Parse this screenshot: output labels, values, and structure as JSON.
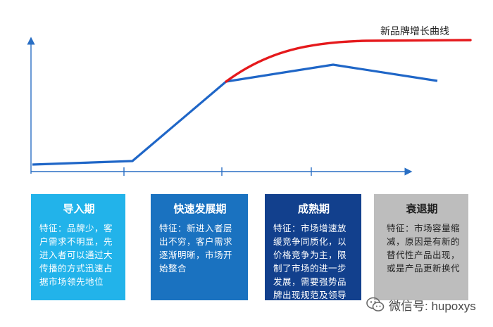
{
  "curve_label": "新品牌增长曲线",
  "stages": [
    {
      "title": "导入期",
      "desc": "特征：品牌少，客户需求不明显，先进入者可以通过大传播的方式迅速占据市场领先地位",
      "color": "#22b3ea"
    },
    {
      "title": "快速发展期",
      "desc": "特征：新进入者层出不穷，客户需求逐渐明晰，市场开始整合",
      "color": "#1a72c0"
    },
    {
      "title": "成熟期",
      "desc": "特征：市场增速放缓竞争同质化，以价格竞争为主，限制了市场的进一步发展，需要强势品牌出现规范及领导行业的进一步增长",
      "color": "#12408d"
    },
    {
      "title": "衰退期",
      "desc": "特征：市场容量缩减，原因是有新的替代性产品出现，或是产品更新换代",
      "color": "#bdbdbd"
    }
  ],
  "colors": {
    "main_curve": "#1f66c7",
    "new_brand_curve": "#e5191c",
    "axis": "#2a6fc4"
  },
  "watermark": {
    "text": "微信号: hupoxys",
    "icon": "wechat-icon"
  }
}
